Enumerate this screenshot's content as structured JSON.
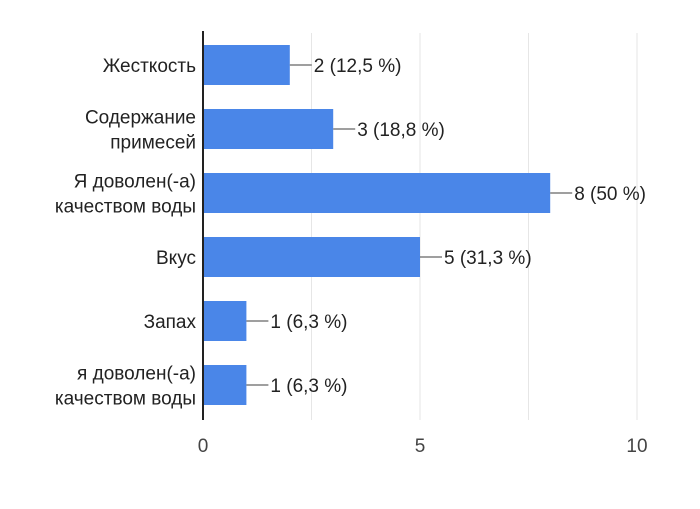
{
  "chart_data": {
    "type": "bar",
    "orientation": "horizontal",
    "categories": [
      [
        "Жесткость"
      ],
      [
        "Содержание",
        "примесей"
      ],
      [
        "Я доволен(-а)",
        "качеством воды"
      ],
      [
        "Вкус"
      ],
      [
        "Запах"
      ],
      [
        "я доволен(-а)",
        "качеством воды"
      ]
    ],
    "values": [
      2,
      3,
      8,
      5,
      1,
      1
    ],
    "data_labels": [
      "2 (12,5 %)",
      "3 (18,8 %)",
      "8 (50 %)",
      "5 (31,3 %)",
      "1 (6,3 %)",
      "1 (6,3 %)"
    ],
    "x_ticks": [
      "0",
      "5",
      "10"
    ],
    "xlim": [
      0,
      10
    ],
    "grid": true,
    "colors": {
      "bar": "#4a86e8",
      "grid": "#e6e6e6",
      "axis": "#222222",
      "leader": "#666666"
    }
  }
}
